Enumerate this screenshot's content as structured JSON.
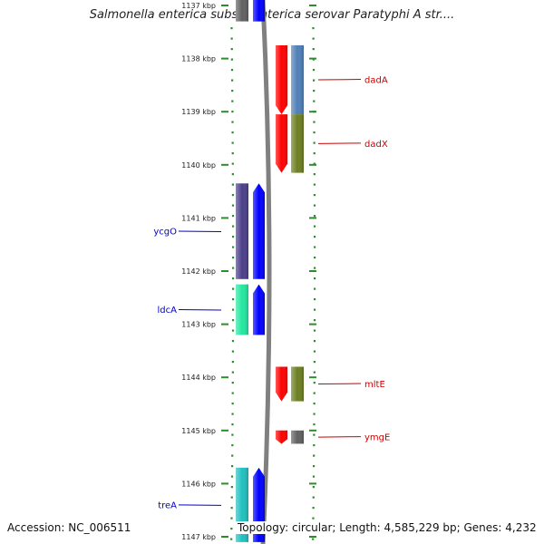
{
  "header": {
    "title": "Salmonella enterica subsp. enterica serovar Paratyphi A str...."
  },
  "footer": {
    "accession": "Accession: NC_006511",
    "summary": "Topology: circular; Length: 4,585,229 bp; Genes: 4,232"
  },
  "colors": {
    "ruler_dots": "#2e8b2e",
    "label_forward": "#0000cc",
    "label_reverse": "#cc0000",
    "backbone": "#808080"
  },
  "scale": {
    "unit": "kbp",
    "visible_range_kbp": [
      1137,
      1147
    ],
    "ticks": [
      {
        "value": 1137,
        "label": "1137 kbp"
      },
      {
        "value": 1138,
        "label": "1138 kbp"
      },
      {
        "value": 1139,
        "label": "1139 kbp"
      },
      {
        "value": 1140,
        "label": "1140 kbp"
      },
      {
        "value": 1141,
        "label": "1141 kbp"
      },
      {
        "value": 1142,
        "label": "1142 kbp"
      },
      {
        "value": 1143,
        "label": "1143 kbp"
      },
      {
        "value": 1144,
        "label": "1144 kbp"
      },
      {
        "value": 1145,
        "label": "1145 kbp"
      },
      {
        "value": 1146,
        "label": "1146 kbp"
      },
      {
        "value": 1147,
        "label": "1147 kbp"
      }
    ]
  },
  "genes": [
    {
      "name": "dadA",
      "strand": "reverse",
      "start_kbp": 1137.75,
      "end_kbp": 1139.05,
      "cog_color": "#4f7fb8"
    },
    {
      "name": "dadX",
      "strand": "reverse",
      "start_kbp": 1139.05,
      "end_kbp": 1140.15,
      "cog_color": "#6b7f22"
    },
    {
      "name": "ycgO",
      "strand": "forward",
      "start_kbp": 1140.35,
      "end_kbp": 1142.15,
      "cog_color": "#4b3f8a"
    },
    {
      "name": "ldcA",
      "strand": "forward",
      "start_kbp": 1142.25,
      "end_kbp": 1143.2,
      "cog_color": "#22e8a0"
    },
    {
      "name": "mltE",
      "strand": "reverse",
      "start_kbp": 1143.8,
      "end_kbp": 1144.45,
      "cog_color": "#6b7f22"
    },
    {
      "name": "ymgE",
      "strand": "reverse",
      "start_kbp": 1145.0,
      "end_kbp": 1145.25,
      "cog_color": "#606060"
    },
    {
      "name": "treA",
      "strand": "forward",
      "start_kbp": 1145.7,
      "end_kbp": 1147.1,
      "cog_color": "#20c0c0"
    },
    {
      "name": "",
      "strand": "forward",
      "start_kbp": 1136.7,
      "end_kbp": 1137.3,
      "cog_color": "#606060"
    }
  ]
}
